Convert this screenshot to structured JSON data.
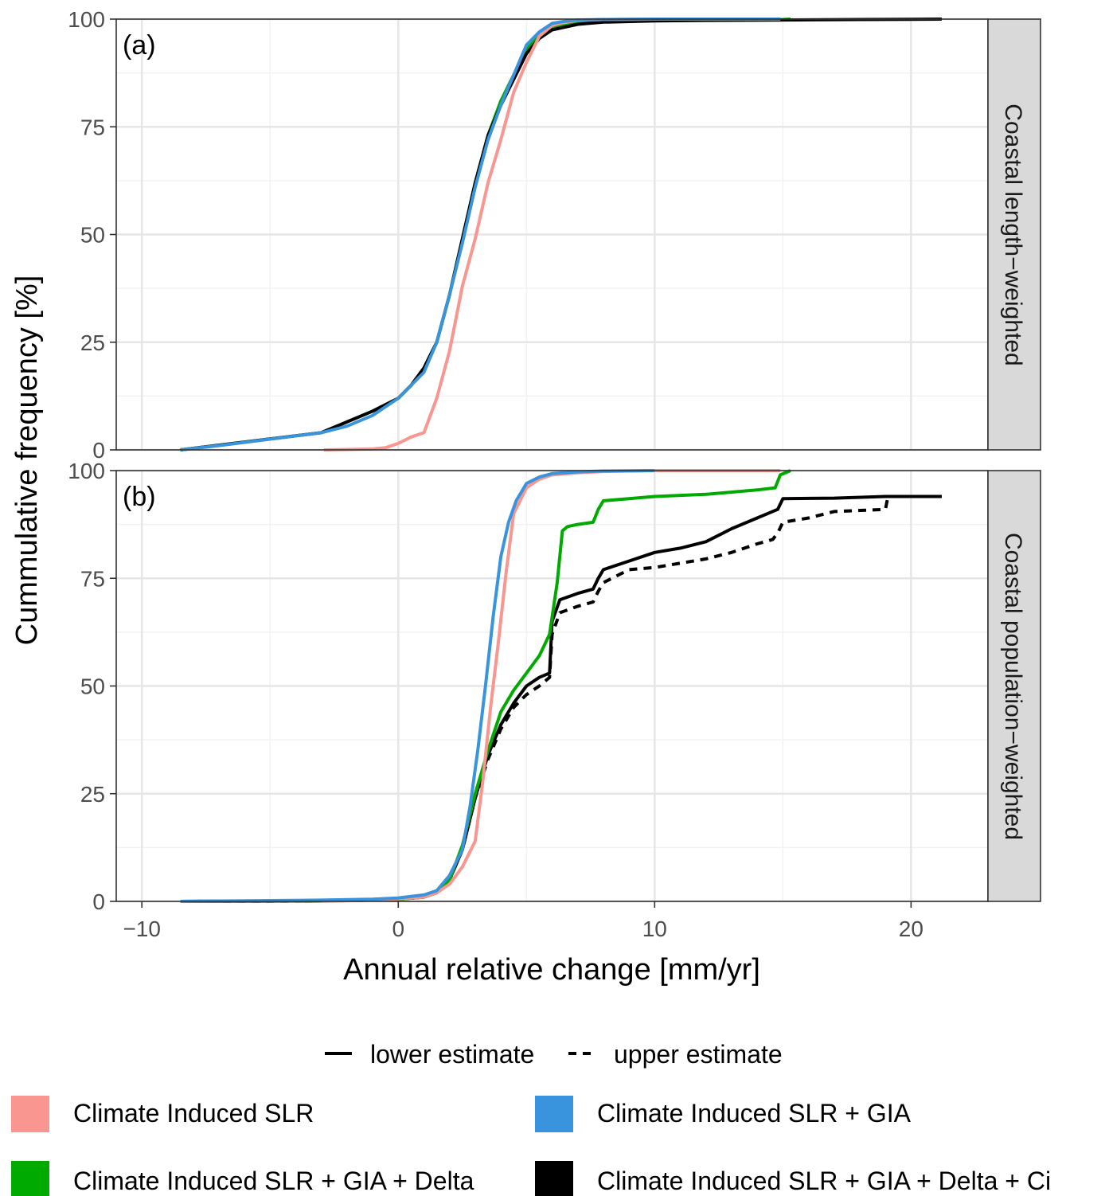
{
  "chart_data": {
    "type": "line",
    "subtype": "empirical cumulative distribution",
    "xlabel": "Annual relative change [mm/yr]",
    "ylabel": "Cummulative frequency [%]",
    "xlim": [
      -11,
      23
    ],
    "ylim": [
      0,
      100
    ],
    "x_ticks": [
      -10,
      0,
      10,
      20
    ],
    "x_tick_labels": [
      "−10",
      "0",
      "10",
      "20"
    ],
    "y_ticks": [
      0,
      25,
      50,
      75,
      100
    ],
    "y_tick_labels": [
      "0",
      "25",
      "50",
      "75",
      "100"
    ],
    "grid": true,
    "legend_position": "bottom",
    "colors": {
      "Climate Induced SLR": "#F8968F",
      "Climate Induced SLR + GIA": "#3A93DD",
      "Climate Induced SLR + GIA + Delta": "#00AA00",
      "Climate Induced SLR + GIA + Delta + Ci": "#000000"
    },
    "linetype_legend": [
      {
        "label": "lower estimate",
        "style": "solid"
      },
      {
        "label": "upper estimate",
        "style": "dashed"
      }
    ],
    "color_legend": [
      "Climate Induced SLR",
      "Climate Induced SLR + GIA",
      "Climate Induced SLR + GIA + Delta",
      "Climate Induced SLR + GIA + Delta + Ci"
    ],
    "panels": [
      {
        "tag": "(a)",
        "strip": "Coastal length−weighted",
        "series": [
          {
            "name": "Climate Induced SLR + GIA + Delta",
            "linetype": "solid",
            "x": [
              -8.5,
              -3,
              -1,
              0,
              0.5,
              1,
              1.5,
              2,
              2.5,
              3,
              3.5,
              4,
              4.5,
              5,
              5.5,
              6,
              7,
              8,
              10,
              12,
              15,
              15.3
            ],
            "y": [
              0,
              4,
              9,
              12,
              15,
              19,
              25,
              36,
              49,
              62,
              73,
              81,
              87,
              93,
              96,
              98,
              99,
              99.5,
              99.7,
              99.8,
              99.9,
              100
            ]
          },
          {
            "name": "Climate Induced SLR + GIA + Delta + Ci",
            "linetype": "solid",
            "x": [
              -8.5,
              -3,
              -1,
              0,
              0.5,
              1,
              1.5,
              2,
              2.5,
              3,
              3.5,
              4,
              4.5,
              5,
              5.5,
              6,
              7,
              8,
              10,
              12,
              15,
              18,
              21.2
            ],
            "y": [
              0,
              4,
              9,
              12,
              15,
              19,
              25,
              36,
              49,
              62,
              73,
              80,
              86,
              92,
              95.5,
              97.5,
              98.8,
              99.3,
              99.6,
              99.7,
              99.8,
              99.9,
              100
            ]
          },
          {
            "name": "Climate Induced SLR",
            "linetype": "solid",
            "x": [
              -2.9,
              -1,
              -0.5,
              0,
              0.5,
              1,
              1.5,
              2,
              2.5,
              3,
              3.5,
              4,
              4.5,
              5,
              5.5,
              6,
              6.5,
              7,
              8,
              10,
              14.9
            ],
            "y": [
              0,
              0.2,
              0.5,
              1.5,
              3,
              4,
              12,
              23,
              38,
              49,
              62,
              72,
              83,
              90,
              96,
              98.5,
              99.3,
              99.7,
              99.9,
              100,
              100
            ]
          },
          {
            "name": "Climate Induced SLR + GIA",
            "linetype": "solid",
            "x": [
              -8.5,
              -7,
              -5,
              -3,
              -2,
              -1,
              -0.5,
              0,
              0.5,
              1,
              1.5,
              2,
              2.5,
              3,
              3.5,
              4,
              4.5,
              5,
              5.5,
              6,
              6.5,
              7,
              8,
              10,
              14.9
            ],
            "y": [
              0,
              1,
              2.5,
              4,
              5.5,
              8,
              10,
              12,
              15,
              18,
              25,
              36,
              48,
              61,
              72,
              80,
              87,
              94,
              97,
              99,
              99.5,
              99.8,
              99.9,
              100,
              100
            ]
          }
        ]
      },
      {
        "tag": "(b)",
        "strip": "Coastal population−weighted",
        "series": [
          {
            "name": "Climate Induced SLR + GIA + Delta + Ci",
            "linetype": "dashed",
            "x": [
              -8.5,
              -3,
              -1,
              0,
              1,
              1.5,
              2,
              2.5,
              3,
              3.5,
              4,
              4.5,
              5,
              5.5,
              5.9,
              6.0,
              6.3,
              7,
              7.6,
              7.8,
              8,
              9,
              10,
              11,
              12,
              13,
              14,
              14.6,
              14.8,
              15,
              16,
              17,
              19,
              19.1,
              21.2
            ],
            "y": [
              0,
              0.1,
              0.3,
              0.5,
              1,
              2,
              5,
              12,
              24,
              33,
              40,
              45,
              48,
              50,
              52,
              62,
              67,
              68.5,
              69.5,
              72,
              74,
              77,
              77.5,
              78.5,
              79.5,
              81,
              83,
              84,
              85.5,
              88,
              89,
              90.5,
              91,
              94,
              94
            ]
          },
          {
            "name": "Climate Induced SLR + GIA + Delta + Ci",
            "linetype": "solid",
            "x": [
              -8.5,
              -3,
              -1,
              0,
              1,
              1.5,
              2,
              2.5,
              3,
              3.5,
              4,
              4.5,
              5,
              5.5,
              5.9,
              6.0,
              6.3,
              7,
              7.6,
              7.8,
              8,
              9,
              10,
              11,
              12,
              12.5,
              13,
              14,
              14.8,
              15,
              17,
              19,
              21.2
            ],
            "y": [
              0,
              0.1,
              0.3,
              0.5,
              1,
              2,
              5,
              12,
              24,
              34,
              41,
              46,
              50,
              52,
              53,
              65,
              70,
              71.5,
              72.5,
              75,
              77,
              79,
              81,
              82,
              83.5,
              85,
              86.5,
              89,
              91,
              93.5,
              93.6,
              94,
              94
            ]
          },
          {
            "name": "Climate Induced SLR + GIA + Delta",
            "linetype": "solid",
            "x": [
              -8.5,
              -3,
              -1,
              0,
              1,
              1.5,
              2,
              2.5,
              3,
              3.5,
              4,
              4.5,
              5,
              5.5,
              5.9,
              6.2,
              6.4,
              6.6,
              7,
              7.6,
              7.8,
              8,
              9,
              10,
              12,
              14,
              14.7,
              14.9,
              15.3
            ],
            "y": [
              0,
              0.1,
              0.3,
              0.5,
              1,
              2,
              5,
              13,
              25,
              35,
              44,
              49,
              53,
              57,
              62,
              74,
              86,
              87,
              87.5,
              88,
              91,
              93,
              93.5,
              94,
              94.5,
              95.5,
              96,
              99,
              100
            ]
          },
          {
            "name": "Climate Induced SLR",
            "linetype": "solid",
            "x": [
              -3,
              -1,
              0,
              1,
              1.5,
              2,
              2.5,
              3,
              3.3,
              3.6,
              3.9,
              4.2,
              4.5,
              5,
              5.5,
              6,
              7,
              8,
              10,
              14.9
            ],
            "y": [
              0,
              0.3,
              0.6,
              1,
              2,
              4,
              8,
              14,
              28,
              45,
              60,
              76,
              90,
              96,
              98,
              99,
              99.5,
              99.8,
              100,
              100
            ]
          },
          {
            "name": "Climate Induced SLR + GIA",
            "linetype": "solid",
            "x": [
              -8.5,
              -3,
              -1,
              0,
              1,
              1.5,
              2,
              2.5,
              2.8,
              3.1,
              3.4,
              3.7,
              4.0,
              4.3,
              4.6,
              5,
              5.5,
              6,
              7,
              8,
              10
            ],
            "y": [
              0,
              0.3,
              0.5,
              0.8,
              1.5,
              2.5,
              6,
              12,
              22,
              35,
              50,
              66,
              80,
              88,
              93,
              97,
              98.5,
              99.3,
              99.7,
              99.9,
              100
            ]
          }
        ]
      }
    ]
  }
}
